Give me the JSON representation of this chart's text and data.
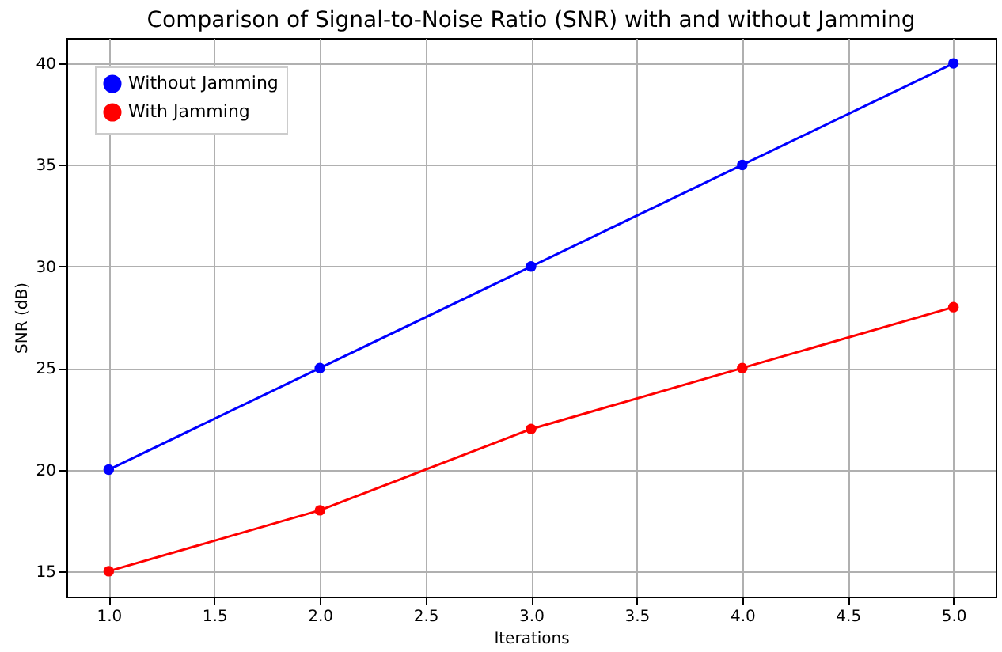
{
  "chart_data": {
    "type": "line",
    "title": "Comparison of Signal-to-Noise Ratio (SNR) with and without Jamming",
    "xlabel": "Iterations",
    "ylabel": "SNR (dB)",
    "x": [
      1,
      2,
      3,
      4,
      5
    ],
    "series": [
      {
        "name": "Without Jamming",
        "color": "#0000ff",
        "values": [
          20,
          25,
          30,
          35,
          40
        ]
      },
      {
        "name": "With Jamming",
        "color": "#ff0000",
        "values": [
          15,
          18,
          22,
          25,
          28
        ]
      }
    ],
    "xlim": [
      0.8,
      5.2
    ],
    "ylim": [
      13.75,
      41.25
    ],
    "xticks": [
      {
        "value": 1,
        "label": "1.0"
      },
      {
        "value": 1.5,
        "label": "1.5"
      },
      {
        "value": 2,
        "label": "2.0"
      },
      {
        "value": 2.5,
        "label": "2.5"
      },
      {
        "value": 3,
        "label": "3.0"
      },
      {
        "value": 3.5,
        "label": "3.5"
      },
      {
        "value": 4,
        "label": "4.0"
      },
      {
        "value": 4.5,
        "label": "4.5"
      },
      {
        "value": 5,
        "label": "5.0"
      }
    ],
    "yticks": [
      15,
      20,
      25,
      30,
      35,
      40
    ],
    "grid": true,
    "legend": "top left",
    "marker": "circle",
    "line_style": "solid"
  }
}
